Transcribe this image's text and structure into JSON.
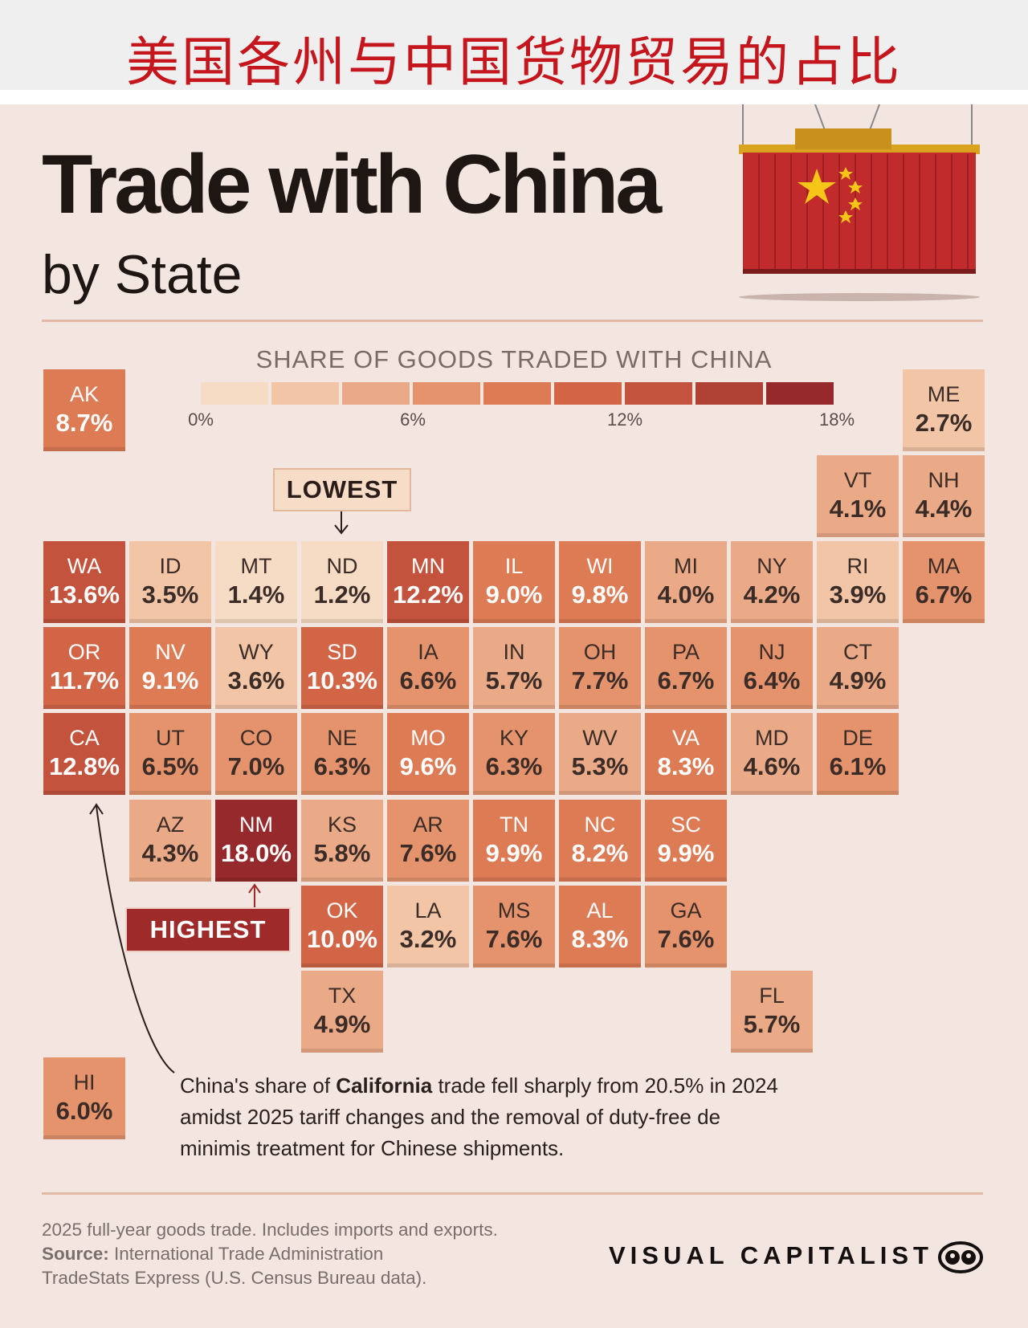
{
  "header": {
    "cn_title": "美国各州与中国货物贸易的占比"
  },
  "title": {
    "main": "Trade with China",
    "sub": "by State"
  },
  "chart_data": {
    "type": "heatmap",
    "title": "Trade with China",
    "subtitle": "by State",
    "legend": {
      "title": "SHARE OF GOODS TRADED WITH CHINA",
      "range": [
        0,
        18
      ],
      "tick_labels": [
        "0%",
        "6%",
        "12%",
        "18%"
      ],
      "tick_values": [
        0,
        6,
        12,
        18
      ],
      "bins": 9,
      "colors": [
        "#f6dcc4",
        "#f1c5a6",
        "#ebaa87",
        "#e5936c",
        "#dd7b55",
        "#d16546",
        "#c3533d",
        "#b04235",
        "#96292b"
      ]
    },
    "states": [
      {
        "abbr": "AK",
        "value": 8.7,
        "label": "8.7%",
        "col": 0,
        "row": 0
      },
      {
        "abbr": "ME",
        "value": 2.7,
        "label": "2.7%",
        "col": 10,
        "row": 0
      },
      {
        "abbr": "VT",
        "value": 4.1,
        "label": "4.1%",
        "col": 9,
        "row": 1
      },
      {
        "abbr": "NH",
        "value": 4.4,
        "label": "4.4%",
        "col": 10,
        "row": 1
      },
      {
        "abbr": "WA",
        "value": 13.6,
        "label": "13.6%",
        "col": 0,
        "row": 2
      },
      {
        "abbr": "ID",
        "value": 3.5,
        "label": "3.5%",
        "col": 1,
        "row": 2
      },
      {
        "abbr": "MT",
        "value": 1.4,
        "label": "1.4%",
        "col": 2,
        "row": 2
      },
      {
        "abbr": "ND",
        "value": 1.2,
        "label": "1.2%",
        "col": 3,
        "row": 2
      },
      {
        "abbr": "MN",
        "value": 12.2,
        "label": "12.2%",
        "col": 4,
        "row": 2
      },
      {
        "abbr": "IL",
        "value": 9.0,
        "label": "9.0%",
        "col": 5,
        "row": 2
      },
      {
        "abbr": "WI",
        "value": 9.8,
        "label": "9.8%",
        "col": 6,
        "row": 2
      },
      {
        "abbr": "MI",
        "value": 4.0,
        "label": "4.0%",
        "col": 7,
        "row": 2
      },
      {
        "abbr": "NY",
        "value": 4.2,
        "label": "4.2%",
        "col": 8,
        "row": 2
      },
      {
        "abbr": "RI",
        "value": 3.9,
        "label": "3.9%",
        "col": 9,
        "row": 2
      },
      {
        "abbr": "MA",
        "value": 6.7,
        "label": "6.7%",
        "col": 10,
        "row": 2
      },
      {
        "abbr": "OR",
        "value": 11.7,
        "label": "11.7%",
        "col": 0,
        "row": 3
      },
      {
        "abbr": "NV",
        "value": 9.1,
        "label": "9.1%",
        "col": 1,
        "row": 3
      },
      {
        "abbr": "WY",
        "value": 3.6,
        "label": "3.6%",
        "col": 2,
        "row": 3
      },
      {
        "abbr": "SD",
        "value": 10.3,
        "label": "10.3%",
        "col": 3,
        "row": 3
      },
      {
        "abbr": "IA",
        "value": 6.6,
        "label": "6.6%",
        "col": 4,
        "row": 3
      },
      {
        "abbr": "IN",
        "value": 5.7,
        "label": "5.7%",
        "col": 5,
        "row": 3
      },
      {
        "abbr": "OH",
        "value": 7.7,
        "label": "7.7%",
        "col": 6,
        "row": 3
      },
      {
        "abbr": "PA",
        "value": 6.7,
        "label": "6.7%",
        "col": 7,
        "row": 3
      },
      {
        "abbr": "NJ",
        "value": 6.4,
        "label": "6.4%",
        "col": 8,
        "row": 3
      },
      {
        "abbr": "CT",
        "value": 4.9,
        "label": "4.9%",
        "col": 9,
        "row": 3
      },
      {
        "abbr": "CA",
        "value": 12.8,
        "label": "12.8%",
        "col": 0,
        "row": 4
      },
      {
        "abbr": "UT",
        "value": 6.5,
        "label": "6.5%",
        "col": 1,
        "row": 4
      },
      {
        "abbr": "CO",
        "value": 7.0,
        "label": "7.0%",
        "col": 2,
        "row": 4
      },
      {
        "abbr": "NE",
        "value": 6.3,
        "label": "6.3%",
        "col": 3,
        "row": 4
      },
      {
        "abbr": "MO",
        "value": 9.6,
        "label": "9.6%",
        "col": 4,
        "row": 4
      },
      {
        "abbr": "KY",
        "value": 6.3,
        "label": "6.3%",
        "col": 5,
        "row": 4
      },
      {
        "abbr": "WV",
        "value": 5.3,
        "label": "5.3%",
        "col": 6,
        "row": 4
      },
      {
        "abbr": "VA",
        "value": 8.3,
        "label": "8.3%",
        "col": 7,
        "row": 4
      },
      {
        "abbr": "MD",
        "value": 4.6,
        "label": "4.6%",
        "col": 8,
        "row": 4
      },
      {
        "abbr": "DE",
        "value": 6.1,
        "label": "6.1%",
        "col": 9,
        "row": 4
      },
      {
        "abbr": "AZ",
        "value": 4.3,
        "label": "4.3%",
        "col": 1,
        "row": 5
      },
      {
        "abbr": "NM",
        "value": 18.0,
        "label": "18.0%",
        "col": 2,
        "row": 5
      },
      {
        "abbr": "KS",
        "value": 5.8,
        "label": "5.8%",
        "col": 3,
        "row": 5
      },
      {
        "abbr": "AR",
        "value": 7.6,
        "label": "7.6%",
        "col": 4,
        "row": 5
      },
      {
        "abbr": "TN",
        "value": 9.9,
        "label": "9.9%",
        "col": 5,
        "row": 5
      },
      {
        "abbr": "NC",
        "value": 8.2,
        "label": "8.2%",
        "col": 6,
        "row": 5
      },
      {
        "abbr": "SC",
        "value": 9.9,
        "label": "9.9%",
        "col": 7,
        "row": 5
      },
      {
        "abbr": "OK",
        "value": 10.0,
        "label": "10.0%",
        "col": 3,
        "row": 6
      },
      {
        "abbr": "LA",
        "value": 3.2,
        "label": "3.2%",
        "col": 4,
        "row": 6
      },
      {
        "abbr": "MS",
        "value": 7.6,
        "label": "7.6%",
        "col": 5,
        "row": 6
      },
      {
        "abbr": "AL",
        "value": 8.3,
        "label": "8.3%",
        "col": 6,
        "row": 6
      },
      {
        "abbr": "GA",
        "value": 7.6,
        "label": "7.6%",
        "col": 7,
        "row": 6
      },
      {
        "abbr": "TX",
        "value": 4.9,
        "label": "4.9%",
        "col": 3,
        "row": 7
      },
      {
        "abbr": "FL",
        "value": 5.7,
        "label": "5.7%",
        "col": 8,
        "row": 7
      },
      {
        "abbr": "HI",
        "value": 6.0,
        "label": "6.0%",
        "col": 0,
        "row": 8
      }
    ]
  },
  "callouts": {
    "lowest": "LOWEST",
    "highest": "HIGHEST"
  },
  "annotation": {
    "pre": "China's share of ",
    "bold": "California",
    "post": " trade fell sharply from 20.5% in 2024 amidst 2025 tariff changes and the removal of duty-free de minimis treatment for Chinese shipments."
  },
  "footer": {
    "note": "2025 full-year goods trade. Includes imports and exports.",
    "source_label": "Source:",
    "source_1": " International Trade Administration",
    "source_2": "TradeStats Express (U.S. Census Bureau data).",
    "brand": "VISUAL CAPITALIST"
  },
  "colors": {
    "header_red": "#c4161c",
    "background": "#f3e6e1",
    "highest_box": "#9e2a2a",
    "lowest_box": "#f7dcc8"
  }
}
